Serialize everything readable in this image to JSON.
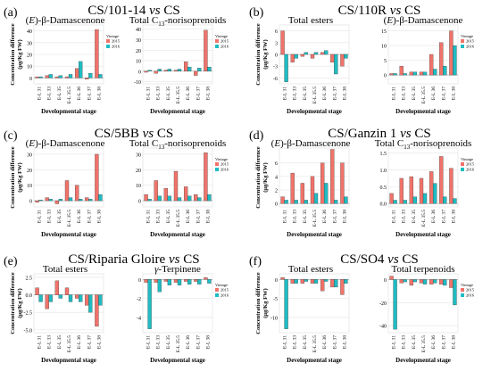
{
  "figure": {
    "colors": {
      "vintage_2015": "#f0736a",
      "vintage_2016": "#1fbcc2",
      "grid": "#e5e5e5"
    },
    "stage_ticks": [
      "E-L 31",
      "E-L 33",
      "E-L 35",
      "E-L 35.5",
      "E-L 36",
      "E-L 37",
      "E-L 38"
    ],
    "vintage_legend": {
      "title": "Vintage",
      "items": [
        "2015",
        "2016"
      ]
    },
    "ylabel_lines": [
      "Concentration difference",
      "(μg/Kg FW)"
    ],
    "xlabel": "Developmental stage",
    "panels": [
      {
        "letter": "(a)",
        "title": "CS/101-14 vs CS",
        "plots": [
          {
            "subtitle": "(E)-β-Damascenone",
            "yticks": [
              "0",
              "10",
              "20",
              "30",
              "40"
            ],
            "show_ylabel": true,
            "show_legend": true,
            "chart_data": {
              "type": "bar",
              "categories": [
                "E-L 31",
                "E-L 33",
                "E-L 35",
                "E-L 35.5",
                "E-L 36",
                "E-L 37",
                "E-L 38"
              ],
              "ylim": [
                -5,
                45
              ],
              "series": [
                {
                  "name": "2015",
                  "values": [
                    1,
                    2,
                    1,
                    1,
                    8,
                    -1,
                    41
                  ]
                },
                {
                  "name": "2016",
                  "values": [
                    1,
                    3,
                    2,
                    3,
                    14,
                    4,
                    3
                  ]
                }
              ]
            }
          },
          {
            "subtitle": "Total C13-norisoprenoids",
            "yticks": [
              "-10",
              "0",
              "10",
              "20",
              "30",
              "40"
            ],
            "show_ylabel": false,
            "show_legend": true,
            "chart_data": {
              "type": "bar",
              "categories": [
                "E-L 31",
                "E-L 33",
                "E-L 35",
                "E-L 35.5",
                "E-L 36",
                "E-L 37",
                "E-L 38"
              ],
              "ylim": [
                -12,
                44
              ],
              "series": [
                {
                  "name": "2015",
                  "values": [
                    -1,
                    -2,
                    1,
                    1,
                    9,
                    -4,
                    39
                  ]
                },
                {
                  "name": "2016",
                  "values": [
                    1,
                    2,
                    2,
                    2,
                    4,
                    3,
                    4
                  ]
                }
              ]
            }
          }
        ]
      },
      {
        "letter": "(b)",
        "title": "CS/110R vs CS",
        "plots": [
          {
            "subtitle": "Total esters",
            "yticks": [
              "-6",
              "-3",
              "0",
              "3",
              "6"
            ],
            "show_ylabel": true,
            "show_legend": false,
            "chart_data": {
              "type": "bar",
              "categories": [
                "E-L 31",
                "E-L 33",
                "E-L 35",
                "E-L 35.5",
                "E-L 36",
                "E-L 37",
                "E-L 38"
              ],
              "ylim": [
                -7.5,
                7.5
              ],
              "series": [
                {
                  "name": "2015",
                  "values": [
                    6,
                    -2,
                    -0.5,
                    -1,
                    0.5,
                    -2,
                    -3
                  ]
                },
                {
                  "name": "2016",
                  "values": [
                    -7,
                    -1,
                    0.5,
                    0.5,
                    1,
                    -5,
                    -1
                  ]
                }
              ]
            }
          },
          {
            "subtitle": "(E)-β-Damascenone",
            "yticks": [
              "0",
              "5",
              "10",
              "15"
            ],
            "show_ylabel": false,
            "show_legend": true,
            "chart_data": {
              "type": "bar",
              "categories": [
                "E-L 31",
                "E-L 33",
                "E-L 35",
                "E-L 35.5",
                "E-L 36",
                "E-L 37",
                "E-L 38"
              ],
              "ylim": [
                -3,
                17
              ],
              "series": [
                {
                  "name": "2015",
                  "values": [
                    0.5,
                    3,
                    1,
                    1,
                    7,
                    11,
                    15
                  ]
                },
                {
                  "name": "2016",
                  "values": [
                    0.5,
                    0.5,
                    1,
                    1,
                    2,
                    3,
                    10
                  ]
                }
              ]
            }
          }
        ]
      },
      {
        "letter": "(c)",
        "title": "CS/5BB vs CS",
        "plots": [
          {
            "subtitle": "(E)-β-Damascenone",
            "yticks": [
              "0",
              "10",
              "20",
              "30"
            ],
            "show_ylabel": true,
            "show_legend": false,
            "chart_data": {
              "type": "bar",
              "categories": [
                "E-L 31",
                "E-L 33",
                "E-L 35",
                "E-L 35.5",
                "E-L 36",
                "E-L 37",
                "E-L 38"
              ],
              "ylim": [
                -4,
                34
              ],
              "series": [
                {
                  "name": "2015",
                  "values": [
                    -1,
                    2,
                    -2,
                    13,
                    10,
                    2,
                    30
                  ]
                },
                {
                  "name": "2016",
                  "values": [
                    0.5,
                    1,
                    1,
                    2,
                    1,
                    1,
                    4
                  ]
                }
              ]
            }
          },
          {
            "subtitle": "Total C13-norisoprenoids",
            "yticks": [
              "0",
              "10",
              "20",
              "30"
            ],
            "show_ylabel": false,
            "show_legend": true,
            "chart_data": {
              "type": "bar",
              "categories": [
                "E-L 31",
                "E-L 33",
                "E-L 35",
                "E-L 35.5",
                "E-L 36",
                "E-L 37",
                "E-L 38"
              ],
              "ylim": [
                -4,
                34
              ],
              "series": [
                {
                  "name": "2015",
                  "values": [
                    4,
                    13,
                    8,
                    19,
                    9,
                    4,
                    31
                  ]
                },
                {
                  "name": "2016",
                  "values": [
                    1,
                    3,
                    3,
                    2,
                    3,
                    2,
                    4
                  ]
                }
              ]
            }
          }
        ]
      },
      {
        "letter": "(d)",
        "title": "CS/Ganzin 1 vs CS",
        "plots": [
          {
            "subtitle": "(E)-β-Damascenone",
            "yticks": [
              "0",
              "2",
              "4",
              "6"
            ],
            "show_ylabel": true,
            "show_legend": false,
            "chart_data": {
              "type": "bar",
              "categories": [
                "E-L 31",
                "E-L 33",
                "E-L 35",
                "E-L 35.5",
                "E-L 36",
                "E-L 37",
                "E-L 38"
              ],
              "ylim": [
                -0.5,
                8.2
              ],
              "series": [
                {
                  "name": "2015",
                  "values": [
                    1,
                    4.5,
                    3,
                    4,
                    6,
                    8,
                    6
                  ]
                },
                {
                  "name": "2016",
                  "values": [
                    0.5,
                    0.5,
                    0.5,
                    1.5,
                    3,
                    0.5,
                    1
                  ]
                }
              ]
            }
          },
          {
            "subtitle": "Total C13-norisoprenoids",
            "yticks": [
              "0.0",
              "0.5",
              "1.0",
              "1.5"
            ],
            "show_ylabel": false,
            "show_legend": true,
            "chart_data": {
              "type": "bar",
              "categories": [
                "E-L 31",
                "E-L 33",
                "E-L 35",
                "E-L 35.5",
                "E-L 36",
                "E-L 37",
                "E-L 38"
              ],
              "ylim": [
                -0.1,
                1.65
              ],
              "series": [
                {
                  "name": "2015",
                  "values": [
                    0.3,
                    0.75,
                    0.8,
                    0.75,
                    0.95,
                    1.4,
                    1.05
                  ]
                },
                {
                  "name": "2016",
                  "values": [
                    0.1,
                    0.1,
                    0.2,
                    0.3,
                    0.6,
                    0.2,
                    0.15
                  ]
                }
              ]
            }
          }
        ]
      },
      {
        "letter": "(e)",
        "title": "CS/Riparia Gloire vs CS",
        "plots": [
          {
            "subtitle": "Total esters",
            "yticks": [
              "-5.0",
              "-2.5",
              "0.0",
              "2.5"
            ],
            "show_ylabel": true,
            "show_legend": false,
            "chart_data": {
              "type": "bar",
              "categories": [
                "E-L 31",
                "E-L 33",
                "E-L 35",
                "E-L 35.5",
                "E-L 36",
                "E-L 37",
                "E-L 38"
              ],
              "ylim": [
                -5.4,
                3
              ],
              "series": [
                {
                  "name": "2015",
                  "values": [
                    1,
                    -2,
                    2,
                    1,
                    -0.5,
                    -1.5,
                    -4.5
                  ]
                },
                {
                  "name": "2016",
                  "values": [
                    -1,
                    -1,
                    -0.5,
                    -1,
                    -1,
                    -2.5,
                    -1.5
                  ]
                }
              ]
            }
          },
          {
            "subtitle": "γ-Terpinene",
            "yticks": [
              "-4",
              "-2",
              "0"
            ],
            "show_ylabel": false,
            "show_legend": true,
            "chart_data": {
              "type": "bar",
              "categories": [
                "E-L 31",
                "E-L 33",
                "E-L 35",
                "E-L 35.5",
                "E-L 36",
                "E-L 37",
                "E-L 38"
              ],
              "ylim": [
                -5.6,
                0.6
              ],
              "series": [
                {
                  "name": "2015",
                  "values": [
                    -0.3,
                    -0.3,
                    -0.2,
                    -0.3,
                    -0.2,
                    -0.2,
                    0.2
                  ]
                },
                {
                  "name": "2016",
                  "values": [
                    -5.2,
                    -1.3,
                    -0.6,
                    -0.6,
                    -0.5,
                    -0.5,
                    -0.4
                  ]
                }
              ]
            }
          }
        ]
      },
      {
        "letter": "(f)",
        "title": "CS/SO4 vs CS",
        "plots": [
          {
            "subtitle": "Total esters",
            "yticks": [
              "-10",
              "-5",
              "0"
            ],
            "show_ylabel": true,
            "show_legend": false,
            "chart_data": {
              "type": "bar",
              "categories": [
                "E-L 31",
                "E-L 33",
                "E-L 35",
                "E-L 35.5",
                "E-L 36",
                "E-L 37",
                "E-L 38"
              ],
              "ylim": [
                -14,
                1.5
              ],
              "series": [
                {
                  "name": "2015",
                  "values": [
                    0.5,
                    -1,
                    -1,
                    -1,
                    -3,
                    -2,
                    -4
                  ]
                },
                {
                  "name": "2016",
                  "values": [
                    -13,
                    -1,
                    -0.5,
                    -1,
                    -0.5,
                    -2,
                    -1
                  ]
                }
              ]
            }
          },
          {
            "subtitle": "Total terpenoids",
            "yticks": [
              "-40",
              "-20",
              "0"
            ],
            "show_ylabel": false,
            "show_legend": true,
            "chart_data": {
              "type": "bar",
              "categories": [
                "E-L 31",
                "E-L 33",
                "E-L 35",
                "E-L 35.5",
                "E-L 36",
                "E-L 37",
                "E-L 38"
              ],
              "ylim": [
                -46,
                5
              ],
              "series": [
                {
                  "name": "2015",
                  "values": [
                    3,
                    -3,
                    -5,
                    -3,
                    -4,
                    -4,
                    -7
                  ]
                },
                {
                  "name": "2016",
                  "values": [
                    -43,
                    -2,
                    -2,
                    -4,
                    -3,
                    -5,
                    -22
                  ]
                }
              ]
            }
          }
        ]
      }
    ]
  }
}
